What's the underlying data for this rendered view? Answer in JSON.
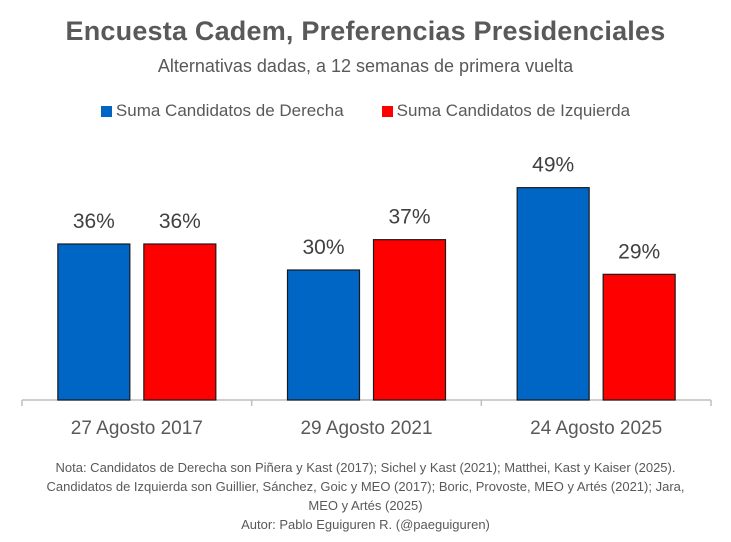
{
  "title": "Encuesta Cadem, Preferencias Presidenciales",
  "subtitle": "Alternativas dadas, a 12 semanas de primera vuelta",
  "note": "Nota: Candidatos de Derecha son Piñera y Kast (2017); Sichel y Kast (2021); Matthei, Kast y Kaiser (2025). Candidatos de Izquierda son Guillier, Sánchez, Goic y MEO (2017); Boric, Provoste, MEO y Artés (2021); Jara, MEO y Artés (2025)",
  "author": "Autor: Pablo Eguiguren R. (@paeguiguren)",
  "colors": {
    "derecha": "#0066C6",
    "izquierda": "#FF0000",
    "text": "#595959",
    "axis": "#BFBFBF"
  },
  "chart_data": {
    "type": "bar",
    "categories": [
      "27 Agosto 2017",
      "29 Agosto 2021",
      "24 Agosto 2025"
    ],
    "series": [
      {
        "name": "Suma Candidatos de Derecha",
        "values": [
          36,
          30,
          49
        ],
        "labels": [
          "36%",
          "30%",
          "49%"
        ]
      },
      {
        "name": "Suma Candidatos de Izquierda",
        "values": [
          36,
          37,
          29
        ],
        "labels": [
          "36%",
          "37%",
          "29%"
        ]
      }
    ],
    "ylim": [
      0,
      60
    ],
    "legend": "top",
    "grid": false
  }
}
